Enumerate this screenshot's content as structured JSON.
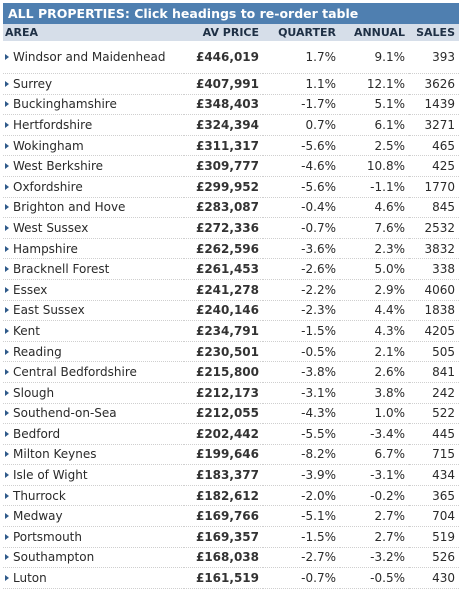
{
  "caption": "ALL PROPERTIES: Click headings to re-order table",
  "headers": {
    "area": "AREA",
    "price": "AV PRICE",
    "quarter": "QUARTER",
    "annual": "ANNUAL",
    "sales": "SALES"
  },
  "rows": [
    {
      "area": "Windsor and Maidenhead",
      "price": "£446,019",
      "quarter": "1.7%",
      "annual": "9.1%",
      "sales": "393"
    },
    {
      "area": "Surrey",
      "price": "£407,991",
      "quarter": "1.1%",
      "annual": "12.1%",
      "sales": "3626"
    },
    {
      "area": "Buckinghamshire",
      "price": "£348,403",
      "quarter": "-1.7%",
      "annual": "5.1%",
      "sales": "1439"
    },
    {
      "area": "Hertfordshire",
      "price": "£324,394",
      "quarter": "0.7%",
      "annual": "6.1%",
      "sales": "3271"
    },
    {
      "area": "Wokingham",
      "price": "£311,317",
      "quarter": "-5.6%",
      "annual": "2.5%",
      "sales": "465"
    },
    {
      "area": "West Berkshire",
      "price": "£309,777",
      "quarter": "-4.6%",
      "annual": "10.8%",
      "sales": "425"
    },
    {
      "area": "Oxfordshire",
      "price": "£299,952",
      "quarter": "-5.6%",
      "annual": "-1.1%",
      "sales": "1770"
    },
    {
      "area": "Brighton and Hove",
      "price": "£283,087",
      "quarter": "-0.4%",
      "annual": "4.6%",
      "sales": "845"
    },
    {
      "area": "West Sussex",
      "price": "£272,336",
      "quarter": "-0.7%",
      "annual": "7.6%",
      "sales": "2532"
    },
    {
      "area": "Hampshire",
      "price": "£262,596",
      "quarter": "-3.6%",
      "annual": "2.3%",
      "sales": "3832"
    },
    {
      "area": "Bracknell Forest",
      "price": "£261,453",
      "quarter": "-2.6%",
      "annual": "5.0%",
      "sales": "338"
    },
    {
      "area": "Essex",
      "price": "£241,278",
      "quarter": "-2.2%",
      "annual": "2.9%",
      "sales": "4060"
    },
    {
      "area": "East Sussex",
      "price": "£240,146",
      "quarter": "-2.3%",
      "annual": "4.4%",
      "sales": "1838"
    },
    {
      "area": "Kent",
      "price": "£234,791",
      "quarter": "-1.5%",
      "annual": "4.3%",
      "sales": "4205"
    },
    {
      "area": "Reading",
      "price": "£230,501",
      "quarter": "-0.5%",
      "annual": "2.1%",
      "sales": "505"
    },
    {
      "area": "Central Bedfordshire",
      "price": "£215,800",
      "quarter": "-3.8%",
      "annual": "2.6%",
      "sales": "841"
    },
    {
      "area": "Slough",
      "price": "£212,173",
      "quarter": "-3.1%",
      "annual": "3.8%",
      "sales": "242"
    },
    {
      "area": "Southend-on-Sea",
      "price": "£212,055",
      "quarter": "-4.3%",
      "annual": "1.0%",
      "sales": "522"
    },
    {
      "area": "Bedford",
      "price": "£202,442",
      "quarter": "-5.5%",
      "annual": "-3.4%",
      "sales": "445"
    },
    {
      "area": "Milton Keynes",
      "price": "£199,646",
      "quarter": "-8.2%",
      "annual": "6.7%",
      "sales": "715"
    },
    {
      "area": "Isle of Wight",
      "price": "£183,377",
      "quarter": "-3.9%",
      "annual": "-3.1%",
      "sales": "434"
    },
    {
      "area": "Thurrock",
      "price": "£182,612",
      "quarter": "-2.0%",
      "annual": "-0.2%",
      "sales": "365"
    },
    {
      "area": "Medway",
      "price": "£169,766",
      "quarter": "-5.1%",
      "annual": "2.7%",
      "sales": "704"
    },
    {
      "area": "Portsmouth",
      "price": "£169,357",
      "quarter": "-1.5%",
      "annual": "2.7%",
      "sales": "519"
    },
    {
      "area": "Southampton",
      "price": "£168,038",
      "quarter": "-2.7%",
      "annual": "-3.2%",
      "sales": "526"
    },
    {
      "area": "Luton",
      "price": "£161,519",
      "quarter": "-0.7%",
      "annual": "-0.5%",
      "sales": "430"
    }
  ],
  "icons": {
    "row_marker": "triangle-right-icon"
  },
  "colors": {
    "caption_bg": "#4f7fb0",
    "header_bg": "#d6dee9",
    "marker": "#2f5a8a"
  }
}
